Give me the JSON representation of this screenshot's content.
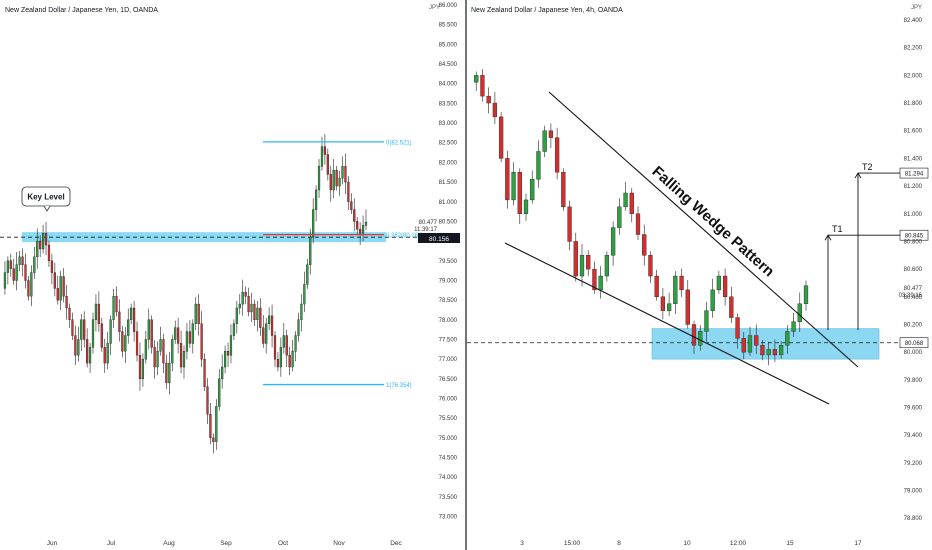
{
  "left_panel": {
    "title": "New Zealand Dollar / Japanese Yen, 1D, OANDA",
    "currency": "JPY",
    "price_axis": [
      "86.000",
      "85.500",
      "85.000",
      "84.500",
      "84.000",
      "83.500",
      "83.000",
      "82.500",
      "82.000",
      "81.500",
      "81.000",
      "80.500",
      "80.000",
      "79.500",
      "79.000",
      "78.500",
      "78.000",
      "77.500",
      "77.000",
      "76.500",
      "76.000",
      "75.500",
      "75.000",
      "74.500",
      "74.000",
      "73.500",
      "73.000"
    ],
    "time_axis": [
      "Jun",
      "Jul",
      "Aug",
      "Sep",
      "Oct",
      "Nov",
      "Dec"
    ],
    "last_price": "80.477",
    "countdown": "11:39:17",
    "current_price": "80.156",
    "key_level_label": "Key Level",
    "key_level_price": 80.1,
    "fib_levels": [
      {
        "label": "0(82.521)",
        "price": 82.521
      },
      {
        "label": "0.382(80.164)",
        "price": 80.164
      },
      {
        "label": "1(76.354)",
        "price": 76.354
      }
    ],
    "chart_data": {
      "type": "candlestick",
      "series_name": "NZD/JPY 1D",
      "x": [
        "Jun",
        "Jul",
        "Aug",
        "Sep",
        "Oct",
        "Nov",
        "Dec"
      ],
      "ylim": [
        72.6,
        86.0
      ],
      "close_path": [
        78.8,
        79.2,
        79.5,
        79.3,
        79.0,
        79.4,
        79.6,
        79.4,
        79.0,
        78.6,
        79.2,
        79.6,
        80.0,
        79.8,
        80.2,
        79.9,
        79.5,
        79.2,
        78.8,
        78.5,
        79.1,
        78.6,
        78.3,
        78.0,
        77.6,
        77.1,
        77.5,
        78.0,
        77.5,
        76.9,
        77.3,
        78.0,
        78.4,
        77.9,
        77.3,
        76.9,
        77.4,
        78.0,
        78.6,
        78.2,
        77.7,
        77.2,
        77.6,
        78.0,
        78.3,
        77.7,
        77.1,
        76.5,
        77.0,
        77.5,
        78.0,
        77.3,
        76.8,
        77.2,
        77.5,
        76.9,
        76.4,
        76.9,
        77.5,
        77.8,
        77.4,
        76.8,
        77.2,
        77.7,
        77.4,
        77.9,
        78.4,
        77.9,
        77.0,
        76.3,
        75.6,
        75.0,
        74.9,
        75.8,
        76.5,
        76.8,
        77.2,
        77.1,
        77.6,
        77.9,
        78.3,
        78.4,
        78.7,
        78.6,
        78.2,
        78.4,
        78.0,
        78.3,
        77.8,
        77.4,
        77.9,
        78.1,
        77.6,
        77.0,
        76.8,
        77.3,
        77.6,
        77.1,
        76.8,
        77.2,
        77.6,
        78.0,
        78.4,
        78.9,
        79.4,
        80.1,
        80.8,
        81.3,
        81.9,
        82.4,
        82.2,
        81.7,
        81.3,
        81.8,
        81.4,
        81.6,
        81.9,
        81.5,
        81.0,
        80.8,
        80.5,
        80.3,
        80.2,
        80.4,
        80.48
      ],
      "key_level": 80.1,
      "fib_0": 82.521,
      "fib_0382": 80.164,
      "fib_1": 76.354
    }
  },
  "right_panel": {
    "title": "New Zealand Dollar / Japanese Yen, 4h, OANDA",
    "currency": "JPY",
    "price_axis": [
      "82.400",
      "82.200",
      "82.000",
      "81.800",
      "81.600",
      "81.400",
      "81.200",
      "81.000",
      "80.800",
      "80.600",
      "80.400",
      "80.200",
      "80.000",
      "79.800",
      "79.600",
      "79.400",
      "79.200",
      "79.000",
      "78.800"
    ],
    "time_axis": [
      "3",
      "15:00",
      "8",
      "10",
      "12:00",
      "15",
      "17"
    ],
    "last_price": "80.477",
    "countdown": "03:39:16",
    "pattern_label": "Falling Wedge Pattern",
    "targets": [
      {
        "label": "T1",
        "price_label": "80.845",
        "price": 80.845
      },
      {
        "label": "T2",
        "price_label": "81.294",
        "price": 81.294
      }
    ],
    "support_price_label": "80.068",
    "support_price": 80.068,
    "chart_data": {
      "type": "candlestick",
      "series_name": "NZD/JPY 4h",
      "x": [
        "3",
        "15:00",
        "8",
        "10",
        "12:00",
        "15",
        "17"
      ],
      "ylim": [
        78.75,
        82.45
      ],
      "close_path": [
        81.95,
        82.0,
        81.85,
        81.8,
        81.7,
        81.4,
        81.1,
        81.3,
        81.0,
        81.1,
        81.25,
        81.45,
        81.6,
        81.55,
        81.3,
        81.05,
        80.8,
        80.55,
        80.7,
        80.6,
        80.45,
        80.55,
        80.7,
        80.9,
        81.05,
        81.15,
        81.0,
        80.85,
        80.7,
        80.55,
        80.4,
        80.3,
        80.35,
        80.55,
        80.45,
        80.2,
        80.05,
        80.15,
        80.3,
        80.45,
        80.55,
        80.4,
        80.25,
        80.1,
        80.0,
        80.12,
        80.05,
        79.98,
        80.02,
        79.98,
        80.05,
        80.15,
        80.22,
        80.35,
        80.48
      ],
      "support_zone": [
        79.95,
        80.17
      ],
      "support_line": 80.068,
      "target_1": 80.845,
      "target_2": 81.294
    }
  },
  "colors": {
    "up": "#2ea043",
    "down": "#d32f2f",
    "zone": "#66ccf0",
    "fib_line": "#29b6f6",
    "fib_mid": "#e53935",
    "axis_text": "#333333"
  }
}
